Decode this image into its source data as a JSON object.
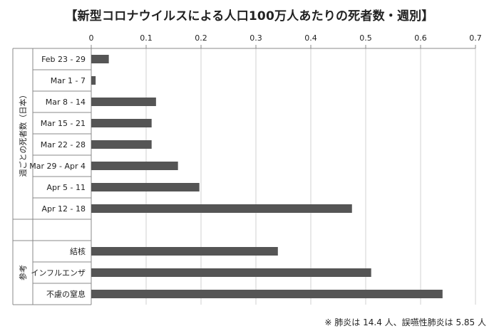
{
  "chart_data": {
    "type": "bar",
    "orientation": "horizontal",
    "title": "【新型コロナウイルスによる人口100万人あたりの死者数・週別】",
    "note": "※ 肺炎は 14.4 人、誤嚥性肺炎は 5.85 人",
    "xlim": [
      0,
      0.7
    ],
    "xticks": [
      "0",
      "0.1",
      "0.2",
      "0.3",
      "0.4",
      "0.5",
      "0.6",
      "0.7"
    ],
    "groups": [
      {
        "label": "週ごとの死者数（日本）",
        "categories": [
          "Feb 23 - 29",
          "Mar 1 - 7",
          "Mar 8 - 14",
          "Mar 15 - 21",
          "Mar 22 - 28",
          "Mar 29 - Apr 4",
          "Apr 5 - 11",
          "Apr 12 - 18"
        ],
        "values": [
          0.032,
          0.008,
          0.118,
          0.11,
          0.11,
          0.158,
          0.197,
          0.475
        ]
      },
      {
        "label": "参考",
        "categories": [
          "結核",
          "インフルエンザ",
          "不慮の窒息"
        ],
        "values": [
          0.34,
          0.51,
          0.64
        ]
      }
    ],
    "bar_color": "#555555",
    "grid": "vertical",
    "legend": "none"
  }
}
